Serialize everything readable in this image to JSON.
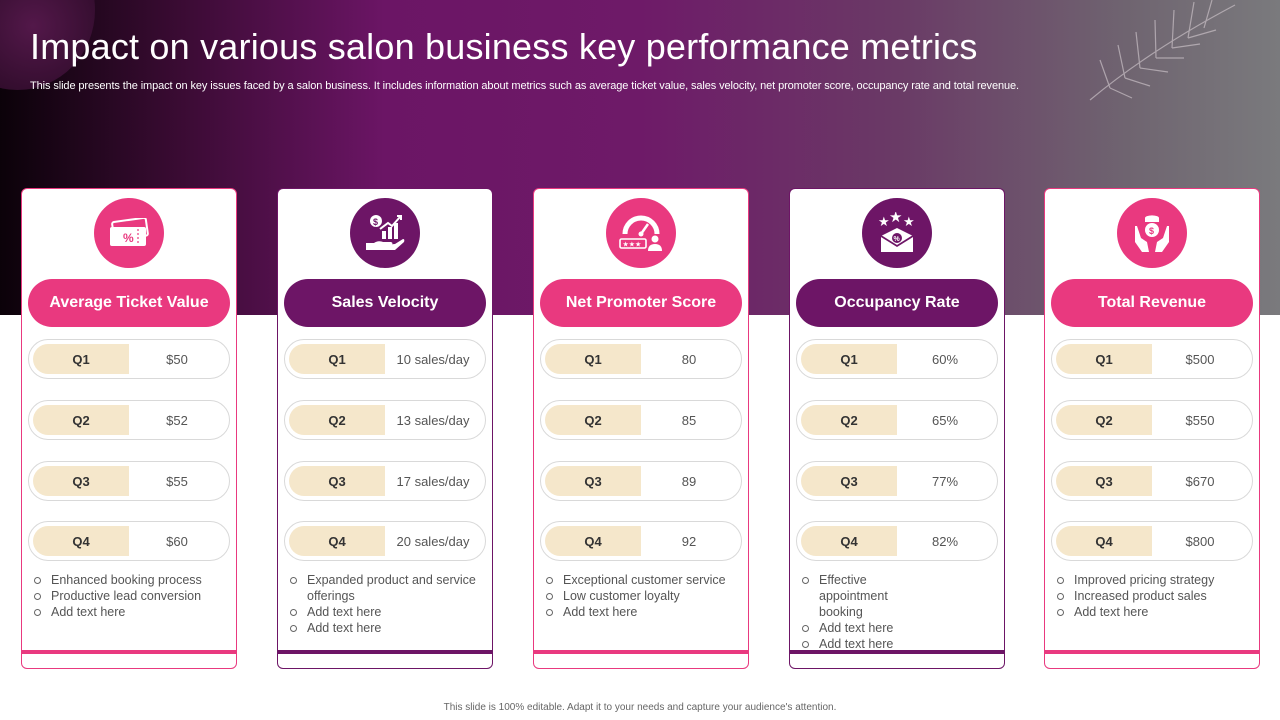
{
  "slide": {
    "title": "Impact on various salon business key performance metrics",
    "subtitle": "This slide presents the impact on key issues faced by a salon business. It includes information about metrics such as average ticket value, sales velocity, net promoter score, occupancy rate and total revenue.",
    "footer": "This slide is 100% editable. Adapt it to your needs and capture your audience's attention."
  },
  "colors": {
    "pink": "#e9397f",
    "purple": "#6d1566",
    "quarter_fill": "#f5e7cb"
  },
  "cards": [
    {
      "title": "Average Ticket Value",
      "icon": "ticket-percent-icon",
      "theme": "pink",
      "rows": [
        {
          "q": "Q1",
          "v": "$50"
        },
        {
          "q": "Q2",
          "v": "$52"
        },
        {
          "q": "Q3",
          "v": "$55"
        },
        {
          "q": "Q4",
          "v": "$60"
        }
      ],
      "bullets": [
        "Enhanced booking process",
        "Productive lead conversion",
        "Add text here"
      ]
    },
    {
      "title": "Sales Velocity",
      "icon": "hand-growth-icon",
      "theme": "purple",
      "rows": [
        {
          "q": "Q1",
          "v": "10 sales/day"
        },
        {
          "q": "Q2",
          "v": "13 sales/day"
        },
        {
          "q": "Q3",
          "v": "17 sales/day"
        },
        {
          "q": "Q4",
          "v": "20 sales/day"
        }
      ],
      "bullets": [
        "Expanded product and service offerings",
        "Add text here",
        "Add text here"
      ]
    },
    {
      "title": "Net Promoter Score",
      "icon": "gauge-rating-icon",
      "theme": "pink",
      "rows": [
        {
          "q": "Q1",
          "v": "80"
        },
        {
          "q": "Q2",
          "v": "85"
        },
        {
          "q": "Q3",
          "v": "89"
        },
        {
          "q": "Q4",
          "v": "92"
        }
      ],
      "bullets": [
        "Exceptional customer service",
        "Low customer loyalty",
        "Add text here"
      ]
    },
    {
      "title": "Occupancy Rate",
      "icon": "stars-envelope-icon",
      "theme": "purple",
      "rows": [
        {
          "q": "Q1",
          "v": "60%"
        },
        {
          "q": "Q2",
          "v": "65%"
        },
        {
          "q": "Q3",
          "v": "77%"
        },
        {
          "q": "Q4",
          "v": "82%"
        }
      ],
      "bullets": [
        "Effective appointment booking",
        "Add text here",
        "Add text here"
      ]
    },
    {
      "title": "Total Revenue",
      "icon": "hands-coins-icon",
      "theme": "pink",
      "rows": [
        {
          "q": "Q1",
          "v": "$500"
        },
        {
          "q": "Q2",
          "v": "$550"
        },
        {
          "q": "Q3",
          "v": "$670"
        },
        {
          "q": "Q4",
          "v": "$800"
        }
      ],
      "bullets": [
        "Improved  pricing strategy",
        "Increased product sales",
        "Add text here"
      ]
    }
  ]
}
